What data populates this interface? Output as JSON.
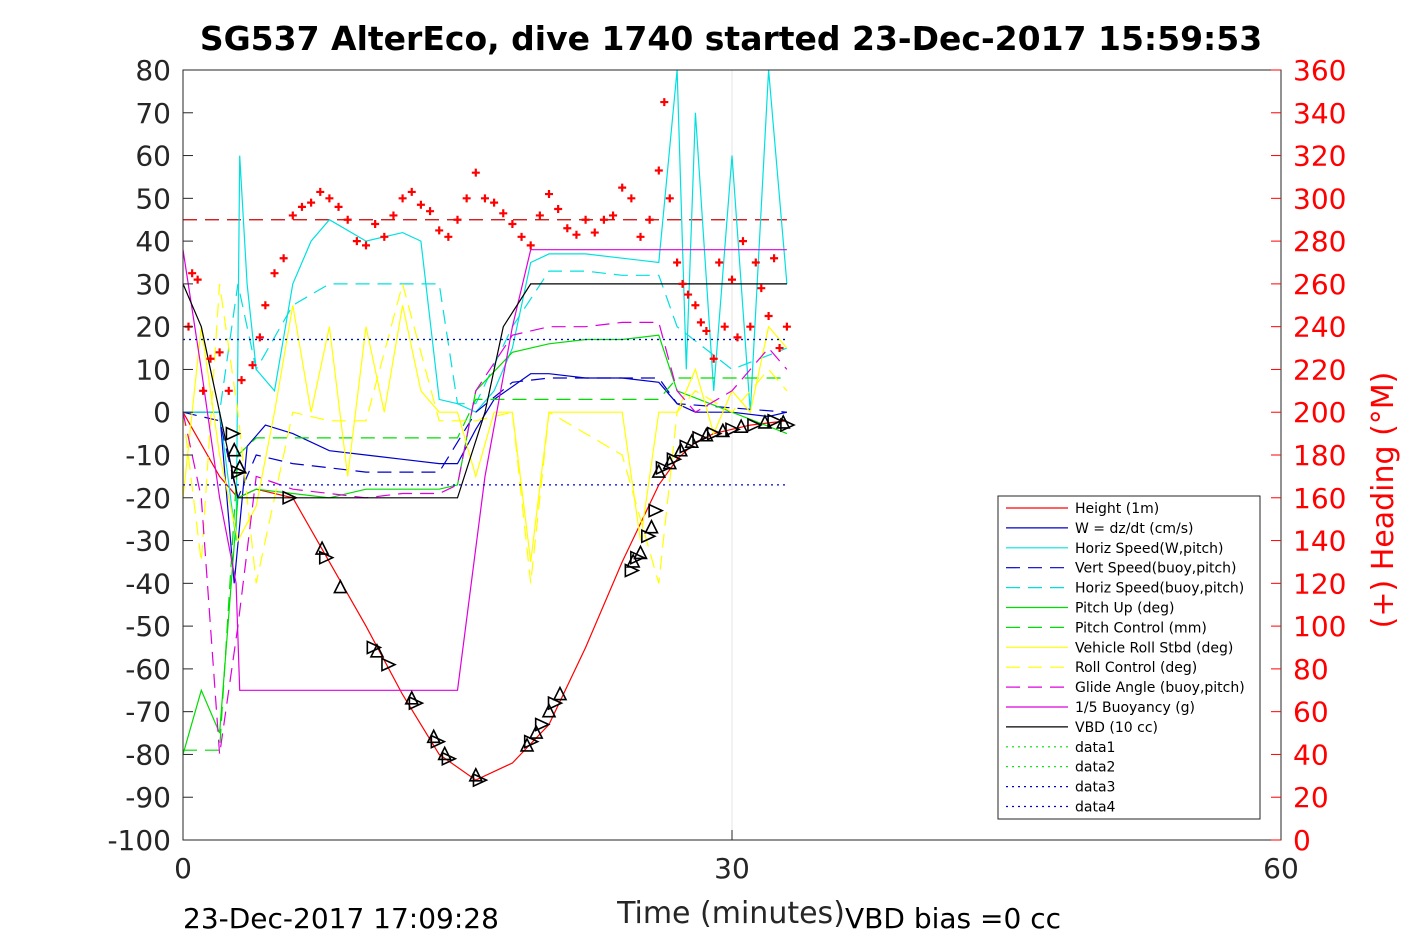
{
  "chart_data": {
    "type": "line",
    "title": "SG537 AlterEco, dive 1740 started 23-Dec-2017 15:59:53",
    "xlabel": "Time (minutes)",
    "ylabel_right": "(+) Heading (°M)",
    "xlim": [
      0,
      60
    ],
    "ylim": [
      -100,
      80
    ],
    "ylim_right": [
      0,
      360
    ],
    "x_ticks": [
      "0",
      "30",
      "60"
    ],
    "y_ticks": [
      "80",
      "70",
      "60",
      "50",
      "40",
      "30",
      "20",
      "10",
      "0",
      "-10",
      "-20",
      "-30",
      "-40",
      "-50",
      "-60",
      "-70",
      "-80",
      "-90",
      "-100"
    ],
    "y_ticks_right": [
      "360",
      "340",
      "320",
      "300",
      "280",
      "260",
      "240",
      "220",
      "200",
      "180",
      "160",
      "140",
      "120",
      "100",
      "80",
      "60",
      "40",
      "20",
      "0"
    ],
    "grid": true,
    "legend_position": "lower-right",
    "footer_left": "23-Dec-2017 17:09:28",
    "footer_right": "VBD bias =0 cc",
    "legend": [
      {
        "label": "Height (1m)",
        "color": "#ff0000",
        "style": "solid"
      },
      {
        "label": "W = dz/dt (cm/s)",
        "color": "#0000cc",
        "style": "solid"
      },
      {
        "label": "Horiz Speed(W,pitch)",
        "color": "#00e0e0",
        "style": "solid"
      },
      {
        "label": "Vert Speed(buoy,pitch)",
        "color": "#0000cc",
        "style": "dashed"
      },
      {
        "label": "Horiz Speed(buoy,pitch)",
        "color": "#00e0e0",
        "style": "dashed"
      },
      {
        "label": "Pitch Up (deg)",
        "color": "#00dd00",
        "style": "solid"
      },
      {
        "label": "Pitch Control (mm)",
        "color": "#00dd00",
        "style": "dashed"
      },
      {
        "label": "Vehicle Roll Stbd (deg)",
        "color": "#ffff00",
        "style": "solid"
      },
      {
        "label": "Roll Control (deg)",
        "color": "#ffff00",
        "style": "dashed"
      },
      {
        "label": "Glide Angle (buoy,pitch)",
        "color": "#dd00dd",
        "style": "dashed"
      },
      {
        "label": "1/5 Buoyancy (g)",
        "color": "#dd00dd",
        "style": "solid"
      },
      {
        "label": "VBD (10 cc)",
        "color": "#000000",
        "style": "solid"
      },
      {
        "label": "data1",
        "color": "#00dd00",
        "style": "dotted"
      },
      {
        "label": "data2",
        "color": "#00dd00",
        "style": "dotted"
      },
      {
        "label": "data3",
        "color": "#0000cc",
        "style": "dotted"
      },
      {
        "label": "data4",
        "color": "#0000cc",
        "style": "dotted"
      }
    ],
    "series": [
      {
        "name": "Height (1m)",
        "color": "#ff0000",
        "x": [
          0,
          2,
          3,
          4,
          6,
          8,
          10,
          12,
          14,
          16,
          18,
          20,
          22,
          24,
          26,
          27,
          28,
          29,
          30,
          31,
          32,
          33
        ],
        "y": [
          0,
          -15,
          -20,
          -18,
          -20,
          -35,
          -50,
          -66,
          -80,
          -86,
          -82,
          -73,
          -55,
          -35,
          -17,
          -11,
          -7,
          -5,
          -4,
          -3,
          -2.5,
          -2
        ]
      },
      {
        "name": "W = dz/dt (cm/s)",
        "color": "#0000cc",
        "x": [
          0,
          2,
          2.8,
          3.5,
          4.5,
          6,
          8,
          10,
          12,
          14,
          15,
          16,
          17,
          18,
          19,
          20,
          22,
          24,
          26,
          27,
          28,
          30,
          32,
          33
        ],
        "y": [
          0,
          0,
          -40,
          -8,
          -3,
          -5,
          -9,
          -10,
          -11,
          -12,
          -12,
          -4,
          3,
          6,
          9,
          9,
          8,
          8,
          7,
          2,
          0,
          0,
          -1,
          0
        ]
      },
      {
        "name": "Horiz Speed(W,pitch)",
        "color": "#00e0e0",
        "x": [
          0,
          2,
          2.9,
          3.1,
          3.5,
          4,
          5,
          6,
          7,
          8,
          10,
          12,
          13,
          14,
          15,
          16,
          17,
          18,
          19,
          20,
          22,
          24,
          26,
          27,
          27.5,
          28,
          29,
          30,
          31,
          32,
          33
        ],
        "y": [
          0,
          0,
          -30,
          60,
          30,
          10,
          5,
          30,
          40,
          45,
          40,
          42,
          40,
          3,
          2,
          0,
          5,
          15,
          35,
          37,
          37,
          36,
          35,
          80,
          10,
          70,
          5,
          60,
          0,
          80,
          30
        ]
      },
      {
        "name": "Vert Speed(buoy,pitch)",
        "color": "#0000cc",
        "x": [
          0,
          2,
          3,
          4,
          6,
          8,
          10,
          12,
          14,
          16,
          18,
          20,
          22,
          24,
          26,
          27,
          30,
          33
        ],
        "y": [
          0,
          -2,
          -20,
          -10,
          -12,
          -13,
          -14,
          -14,
          -14,
          0,
          7,
          8,
          8,
          8,
          8,
          2,
          1,
          0
        ]
      },
      {
        "name": "Horiz Speed(buoy,pitch)",
        "color": "#00e0e0",
        "x": [
          0,
          2,
          3,
          4,
          6,
          8,
          10,
          12,
          14,
          15,
          16,
          18,
          20,
          22,
          24,
          26,
          27,
          30,
          33
        ],
        "y": [
          0,
          0,
          30,
          10,
          25,
          30,
          30,
          30,
          30,
          2,
          2,
          20,
          33,
          33,
          32,
          32,
          20,
          10,
          15
        ]
      },
      {
        "name": "Pitch Up (deg)",
        "color": "#00dd00",
        "x": [
          0,
          1,
          2,
          3,
          4,
          6,
          8,
          10,
          12,
          14,
          15,
          16,
          18,
          20,
          22,
          24,
          26,
          27,
          30,
          33
        ],
        "y": [
          -80,
          -65,
          -75,
          -20,
          -18,
          -19,
          -20,
          -18,
          -18,
          -18,
          -17,
          5,
          14,
          16,
          17,
          17,
          18,
          5,
          0,
          -5
        ]
      },
      {
        "name": "Pitch Control (mm)",
        "color": "#00dd00",
        "x": [
          0,
          1,
          2,
          3,
          4,
          6,
          8,
          10,
          12,
          14,
          15,
          16,
          18,
          20,
          22,
          24,
          26,
          27,
          30,
          33
        ],
        "y": [
          -79,
          -79,
          -79,
          -10,
          -6,
          -6,
          -6,
          -6,
          -6,
          -6,
          -6,
          3,
          3,
          3,
          3,
          3,
          3,
          8,
          8,
          8
        ]
      },
      {
        "name": "Vehicle Roll Stbd (deg)",
        "color": "#ffff00",
        "x": [
          0,
          1,
          2,
          3,
          4,
          5,
          6,
          7,
          8,
          9,
          10,
          11,
          12,
          13,
          14,
          15,
          16,
          17,
          18,
          19,
          20,
          21,
          22,
          24,
          25,
          26,
          27,
          28,
          29,
          30,
          31,
          32,
          33
        ],
        "y": [
          -20,
          20,
          -10,
          -30,
          -22,
          0,
          25,
          0,
          20,
          -15,
          20,
          0,
          25,
          5,
          0,
          0,
          -15,
          0,
          0,
          -35,
          0,
          0,
          0,
          0,
          -30,
          0,
          0,
          10,
          -5,
          5,
          0,
          20,
          15
        ]
      },
      {
        "name": "Roll Control (deg)",
        "color": "#ffff00",
        "x": [
          0,
          1,
          2,
          3,
          4,
          6,
          8,
          10,
          12,
          14,
          16,
          18,
          19,
          20,
          22,
          24,
          26,
          27,
          28,
          30,
          32,
          33
        ],
        "y": [
          0,
          -35,
          30,
          0,
          -40,
          0,
          -2,
          -2,
          30,
          -2,
          -2,
          0,
          -40,
          0,
          -5,
          -10,
          -40,
          0,
          5,
          0,
          10,
          5
        ]
      },
      {
        "name": "Glide Angle (buoy,pitch)",
        "color": "#dd00dd",
        "x": [
          0,
          1,
          2,
          3,
          4,
          6,
          8,
          10,
          12,
          14,
          15,
          16,
          18,
          20,
          22,
          24,
          26,
          27,
          28,
          30,
          32,
          33
        ],
        "y": [
          0,
          -20,
          -80,
          -50,
          -15,
          -18,
          -19,
          -20,
          -19,
          -19,
          -17,
          5,
          18,
          20,
          20,
          21,
          21,
          5,
          0,
          5,
          15,
          10
        ]
      },
      {
        "name": "1/5 Buoyancy (g)",
        "color": "#dd00dd",
        "x": [
          0,
          1,
          2,
          2.9,
          3.1,
          15,
          16.5,
          18,
          19,
          20,
          22,
          24,
          26,
          28,
          30,
          32,
          33
        ],
        "y": [
          38,
          10,
          -20,
          -40,
          -65,
          -65,
          -15,
          20,
          38,
          38,
          38,
          38,
          38,
          38,
          38,
          38,
          38
        ]
      },
      {
        "name": "VBD (10 cc)",
        "color": "#000000",
        "x": [
          0,
          1,
          2,
          2.5,
          3,
          15,
          16.5,
          17.5,
          19,
          20,
          22,
          24,
          26,
          28,
          30,
          32,
          33
        ],
        "y": [
          30,
          20,
          0,
          -10,
          -20,
          -20,
          0,
          20,
          30,
          30,
          30,
          30,
          30,
          30,
          30,
          30,
          30
        ]
      },
      {
        "name": "data2",
        "color": "#00dd00",
        "x": [
          0,
          33
        ],
        "y": [
          17,
          17
        ]
      },
      {
        "name": "data3",
        "color": "#0000cc",
        "x": [
          0,
          33
        ],
        "y": [
          17,
          17
        ]
      },
      {
        "name": "data4",
        "color": "#0000cc",
        "x": [
          0,
          33
        ],
        "y": [
          -17,
          -17
        ]
      }
    ],
    "heading_reference": {
      "value": 290,
      "color": "#cc0000"
    },
    "heading_points": {
      "axis": "right",
      "color": "#ff0000",
      "x": [
        0.3,
        0.5,
        0.8,
        1.1,
        1.5,
        2.0,
        2.5,
        3.2,
        3.8,
        4.2,
        4.5,
        5.0,
        5.5,
        6.0,
        6.5,
        7.0,
        7.5,
        8.0,
        8.5,
        9.0,
        9.5,
        10.0,
        10.5,
        11.0,
        11.5,
        12.0,
        12.5,
        13.0,
        13.5,
        14.0,
        14.5,
        15.0,
        15.5,
        16.0,
        16.5,
        17.0,
        17.5,
        18.0,
        18.5,
        19.0,
        19.5,
        20.0,
        20.5,
        21.0,
        21.5,
        22.0,
        22.5,
        23.0,
        23.5,
        24.0,
        24.5,
        25.0,
        25.5,
        26.0,
        26.3,
        26.6,
        27.0,
        27.3,
        27.6,
        28.0,
        28.3,
        28.6,
        29.0,
        29.3,
        29.6,
        30.0,
        30.3,
        30.6,
        31.0,
        31.3,
        31.6,
        32.0,
        32.3,
        32.6,
        33.0
      ],
      "y": [
        240,
        265,
        262,
        210,
        225,
        228,
        210,
        215,
        222,
        235,
        250,
        265,
        272,
        292,
        296,
        298,
        303,
        300,
        296,
        290,
        280,
        278,
        288,
        282,
        292,
        300,
        303,
        297,
        294,
        285,
        282,
        290,
        300,
        312,
        300,
        298,
        293,
        288,
        282,
        278,
        292,
        302,
        295,
        286,
        283,
        290,
        284,
        290,
        292,
        305,
        300,
        282,
        290,
        313,
        345,
        300,
        270,
        260,
        255,
        250,
        242,
        238,
        225,
        270,
        240,
        262,
        235,
        280,
        240,
        270,
        258,
        245,
        272,
        230,
        240
      ]
    },
    "depth_markers": {
      "color": "#000000",
      "x": [
        2.7,
        2.8,
        3.0,
        3.1,
        5.8,
        7.6,
        7.8,
        8.6,
        10.4,
        10.6,
        11.2,
        12.5,
        12.7,
        13.7,
        13.9,
        14.3,
        14.5,
        16.0,
        16.2,
        18.8,
        19.0,
        19.3,
        19.6,
        20.0,
        20.3,
        20.6,
        24.5,
        24.6,
        24.8,
        25.0,
        25.4,
        25.6,
        25.8,
        26.0,
        26.2,
        26.6,
        26.8,
        27.2,
        27.5,
        27.8,
        28.2,
        28.6,
        29.0,
        29.5,
        30.0,
        30.5,
        31.2,
        31.8,
        32.3,
        32.8,
        33.0
      ],
      "y": [
        -5,
        -9,
        -14,
        -13,
        -20,
        -32,
        -34,
        -41,
        -55,
        -56,
        -59,
        -67,
        -68,
        -76,
        -77,
        -80,
        -81,
        -85,
        -86,
        -78,
        -77,
        -75,
        -73,
        -70,
        -68,
        -66,
        -37,
        -35,
        -34,
        -33,
        -29,
        -27,
        -23,
        -14,
        -13,
        -12,
        -11,
        -9,
        -8,
        -7,
        -6,
        -5.5,
        -5,
        -4.5,
        -4,
        -3.5,
        -3,
        -2.5,
        -2,
        -2.5,
        -3
      ]
    }
  }
}
